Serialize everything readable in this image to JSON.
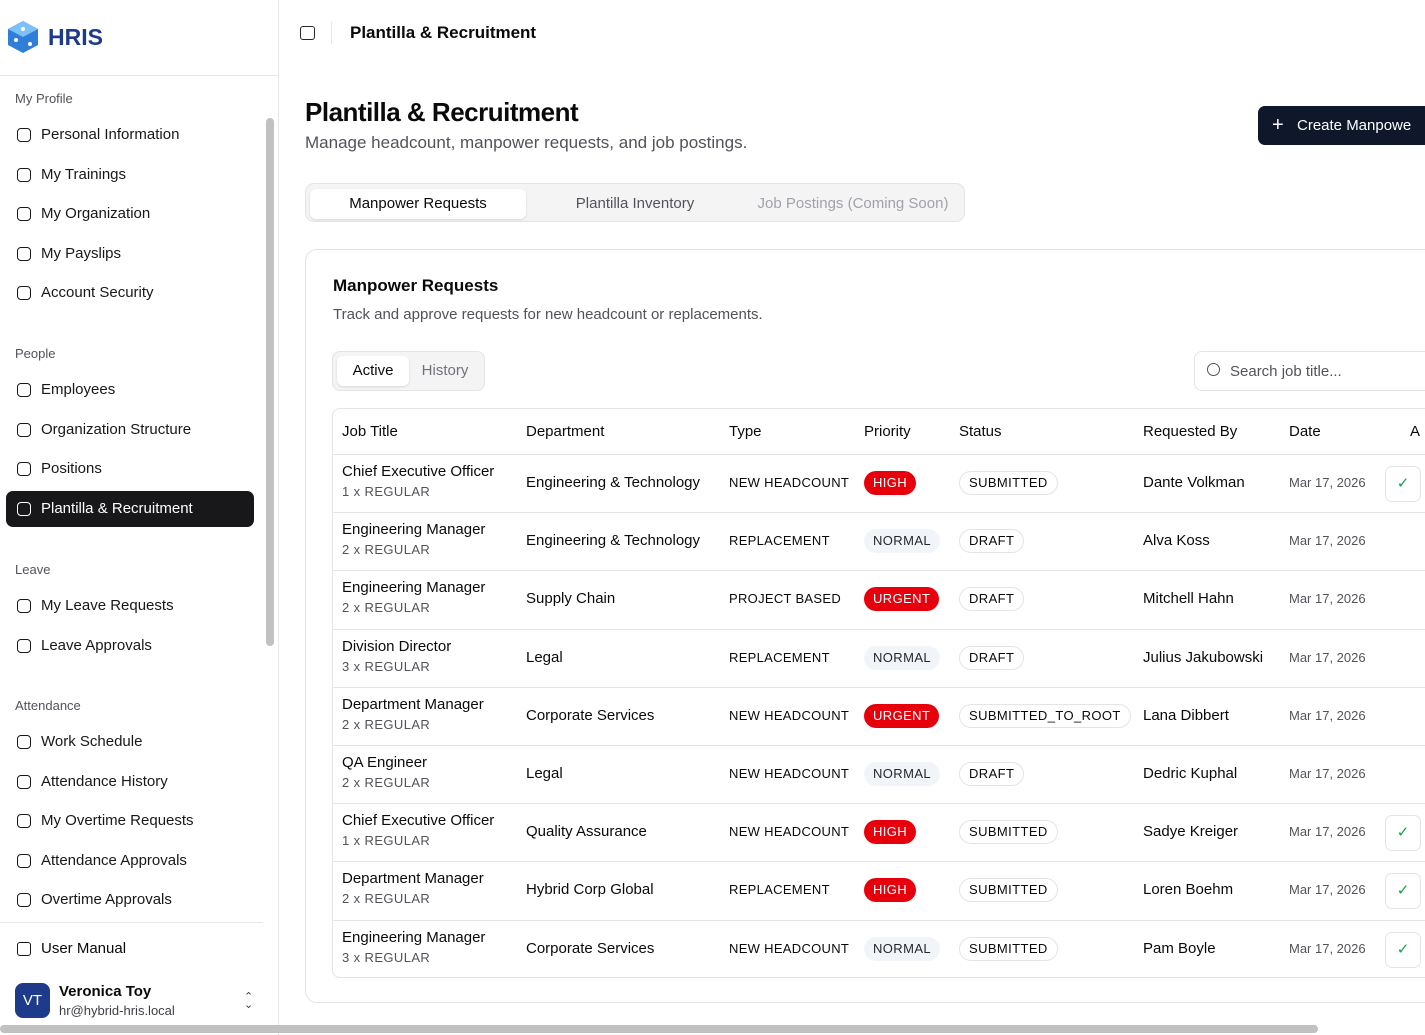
{
  "app": {
    "logo": "HRIS"
  },
  "sidebar": {
    "sections": [
      {
        "title": "My Profile",
        "items": [
          {
            "label": "Personal Information"
          },
          {
            "label": "My Trainings"
          },
          {
            "label": "My Organization"
          },
          {
            "label": "My Payslips"
          },
          {
            "label": "Account Security"
          }
        ]
      },
      {
        "title": "People",
        "items": [
          {
            "label": "Employees"
          },
          {
            "label": "Organization Structure"
          },
          {
            "label": "Positions"
          },
          {
            "label": "Plantilla & Recruitment",
            "active": true
          }
        ]
      },
      {
        "title": "Leave",
        "items": [
          {
            "label": "My Leave Requests"
          },
          {
            "label": "Leave Approvals"
          }
        ]
      },
      {
        "title": "Attendance",
        "items": [
          {
            "label": "Work Schedule"
          },
          {
            "label": "Attendance History"
          },
          {
            "label": "My Overtime Requests"
          },
          {
            "label": "Attendance Approvals"
          },
          {
            "label": "Overtime Approvals"
          }
        ]
      }
    ],
    "manual": "User Manual",
    "user": {
      "initials": "VT",
      "name": "Veronica Toy",
      "email": "hr@hybrid-hris.local"
    }
  },
  "header": {
    "breadcrumb": "Plantilla & Recruitment"
  },
  "page": {
    "title": "Plantilla & Recruitment",
    "subtitle": "Manage headcount, manpower requests, and job postings.",
    "create_button": "Create Manpowe",
    "tabs": [
      {
        "label": "Manpower Requests",
        "active": true
      },
      {
        "label": "Plantilla Inventory"
      },
      {
        "label": "Job Postings (Coming Soon)",
        "disabled": true
      }
    ],
    "card": {
      "title": "Manpower Requests",
      "subtitle": "Track and approve requests for new headcount or replacements.",
      "filters": [
        {
          "label": "Active",
          "active": true
        },
        {
          "label": "History"
        }
      ],
      "search_placeholder": "Search job title...",
      "table": {
        "columns": [
          "Job Title",
          "Department",
          "Type",
          "Priority",
          "Status",
          "Requested By",
          "Date",
          "A"
        ],
        "rows": [
          {
            "job": "Chief Executive Officer",
            "count": "1 x REGULAR",
            "department": "Engineering & Technology",
            "type": "NEW HEADCOUNT",
            "priority": "HIGH",
            "priority_color": "#e7000b",
            "status": "SUBMITTED",
            "requested_by": "Dante Volkman",
            "date": "Mar 17, 2026",
            "approve_action": true
          },
          {
            "job": "Engineering Manager",
            "count": "2 x REGULAR",
            "department": "Engineering & Technology",
            "type": "REPLACEMENT",
            "priority": "NORMAL",
            "priority_color": "#f1f5f9",
            "status": "DRAFT",
            "requested_by": "Alva Koss",
            "date": "Mar 17, 2026"
          },
          {
            "job": "Engineering Manager",
            "count": "2 x REGULAR",
            "department": "Supply Chain",
            "type": "PROJECT BASED",
            "priority": "URGENT",
            "priority_color": "#e7000b",
            "status": "DRAFT",
            "requested_by": "Mitchell Hahn",
            "date": "Mar 17, 2026"
          },
          {
            "job": "Division Director",
            "count": "3 x REGULAR",
            "department": "Legal",
            "type": "REPLACEMENT",
            "priority": "NORMAL",
            "priority_color": "#f1f5f9",
            "status": "DRAFT",
            "requested_by": "Julius Jakubowski",
            "date": "Mar 17, 2026"
          },
          {
            "job": "Department Manager",
            "count": "2 x REGULAR",
            "department": "Corporate Services",
            "type": "NEW HEADCOUNT",
            "priority": "URGENT",
            "priority_color": "#e7000b",
            "status": "SUBMITTED_TO_ROOT",
            "requested_by": "Lana Dibbert",
            "date": "Mar 17, 2026"
          },
          {
            "job": "QA Engineer",
            "count": "2 x REGULAR",
            "department": "Legal",
            "type": "NEW HEADCOUNT",
            "priority": "NORMAL",
            "priority_color": "#f1f5f9",
            "status": "DRAFT",
            "requested_by": "Dedric Kuphal",
            "date": "Mar 17, 2026"
          },
          {
            "job": "Chief Executive Officer",
            "count": "1 x REGULAR",
            "department": "Quality Assurance",
            "type": "NEW HEADCOUNT",
            "priority": "HIGH",
            "priority_color": "#e7000b",
            "status": "SUBMITTED",
            "requested_by": "Sadye Kreiger",
            "date": "Mar 17, 2026",
            "approve_action": true
          },
          {
            "job": "Department Manager",
            "count": "2 x REGULAR",
            "department": "Hybrid Corp Global",
            "type": "REPLACEMENT",
            "priority": "HIGH",
            "priority_color": "#e7000b",
            "status": "SUBMITTED",
            "requested_by": "Loren Boehm",
            "date": "Mar 17, 2026",
            "approve_action": true
          },
          {
            "job": "Engineering Manager",
            "count": "3 x REGULAR",
            "department": "Corporate Services",
            "type": "NEW HEADCOUNT",
            "priority": "NORMAL",
            "priority_color": "#f1f5f9",
            "status": "SUBMITTED",
            "requested_by": "Pam Boyle",
            "date": "Mar 17, 2026",
            "approve_action": true
          }
        ]
      }
    }
  }
}
